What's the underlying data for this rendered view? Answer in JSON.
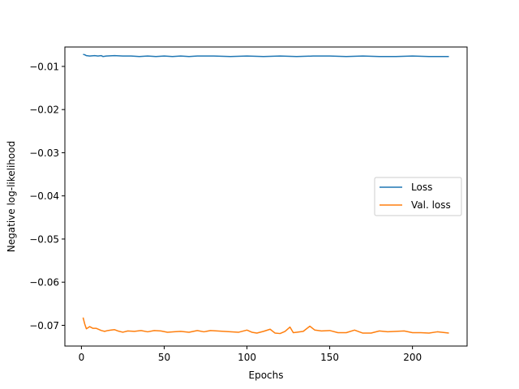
{
  "chart_data": {
    "type": "line",
    "title": "",
    "xlabel": "Epochs",
    "ylabel": "Negative log-likelihood",
    "xlim": [
      -10,
      233
    ],
    "ylim": [
      -0.0748,
      -0.0055
    ],
    "xticks": [
      0,
      50,
      100,
      150,
      200
    ],
    "xtick_labels": [
      "0",
      "50",
      "100",
      "150",
      "200"
    ],
    "yticks": [
      -0.01,
      -0.02,
      -0.03,
      -0.04,
      -0.05,
      -0.06,
      -0.07
    ],
    "ytick_labels": [
      "−0.01",
      "−0.02",
      "−0.03",
      "−0.04",
      "−0.05",
      "−0.06",
      "−0.07"
    ],
    "grid": false,
    "legend_position": "center-right",
    "series": [
      {
        "name": "Loss",
        "color": "#1f77b4",
        "x": [
          1,
          2,
          3,
          5,
          8,
          10,
          12,
          13,
          15,
          20,
          25,
          30,
          35,
          40,
          45,
          50,
          55,
          60,
          65,
          70,
          80,
          90,
          100,
          110,
          120,
          130,
          140,
          150,
          160,
          170,
          180,
          190,
          200,
          210,
          222
        ],
        "y": [
          -0.0072,
          -0.0073,
          -0.0075,
          -0.0076,
          -0.0075,
          -0.0076,
          -0.0075,
          -0.0077,
          -0.0076,
          -0.0075,
          -0.0076,
          -0.0076,
          -0.0077,
          -0.0076,
          -0.0077,
          -0.0076,
          -0.0077,
          -0.0076,
          -0.0077,
          -0.0076,
          -0.0076,
          -0.0077,
          -0.0076,
          -0.0077,
          -0.0076,
          -0.0077,
          -0.0076,
          -0.0076,
          -0.0077,
          -0.0076,
          -0.0077,
          -0.0077,
          -0.0076,
          -0.0077,
          -0.0077
        ]
      },
      {
        "name": "Val. loss",
        "color": "#ff7f0e",
        "x": [
          1,
          2,
          3,
          5,
          7,
          9,
          12,
          14,
          16,
          18,
          20,
          22,
          25,
          28,
          32,
          36,
          40,
          44,
          48,
          52,
          56,
          60,
          65,
          70,
          74,
          78,
          82,
          86,
          90,
          95,
          100,
          103,
          106,
          110,
          114,
          117,
          120,
          123,
          126,
          128,
          130,
          134,
          138,
          141,
          145,
          150,
          155,
          160,
          165,
          170,
          175,
          180,
          185,
          190,
          195,
          200,
          205,
          210,
          215,
          222
        ],
        "y": [
          -0.0682,
          -0.0697,
          -0.0708,
          -0.0703,
          -0.0707,
          -0.0707,
          -0.0712,
          -0.0714,
          -0.0712,
          -0.0711,
          -0.071,
          -0.0713,
          -0.0716,
          -0.0713,
          -0.0714,
          -0.0712,
          -0.0715,
          -0.0712,
          -0.0713,
          -0.0716,
          -0.0715,
          -0.0714,
          -0.0716,
          -0.0712,
          -0.0715,
          -0.0712,
          -0.0713,
          -0.0714,
          -0.0715,
          -0.0716,
          -0.0711,
          -0.0716,
          -0.0718,
          -0.0714,
          -0.0709,
          -0.0718,
          -0.0719,
          -0.0714,
          -0.0704,
          -0.0717,
          -0.0716,
          -0.0714,
          -0.0702,
          -0.0711,
          -0.0713,
          -0.0712,
          -0.0717,
          -0.0717,
          -0.0711,
          -0.0718,
          -0.0718,
          -0.0713,
          -0.0715,
          -0.0714,
          -0.0713,
          -0.0717,
          -0.0717,
          -0.0718,
          -0.0715,
          -0.0718
        ]
      }
    ]
  }
}
